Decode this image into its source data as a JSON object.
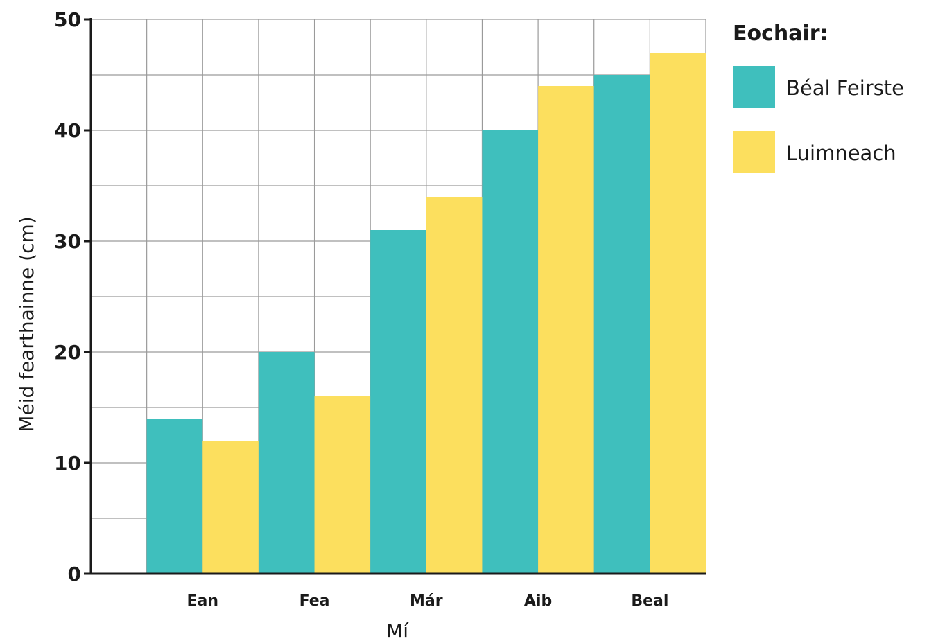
{
  "chart_data": {
    "type": "bar",
    "categories": [
      "Ean",
      "Fea",
      "Már",
      "Aib",
      "Beal"
    ],
    "series": [
      {
        "name": "Béal Feirste",
        "values": [
          14,
          20,
          31,
          40,
          45
        ],
        "color": "#3fbfbd"
      },
      {
        "name": "Luimneach",
        "values": [
          12,
          16,
          34,
          44,
          47
        ],
        "color": "#fcdf5e"
      }
    ],
    "xlabel": "Mí",
    "ylabel": "Méid fearthainne (cm)",
    "ylim": [
      0,
      50
    ],
    "yticks": [
      0,
      10,
      20,
      30,
      40,
      50
    ],
    "grid": true,
    "legend": {
      "title": "Eochair:",
      "position": "right"
    }
  }
}
